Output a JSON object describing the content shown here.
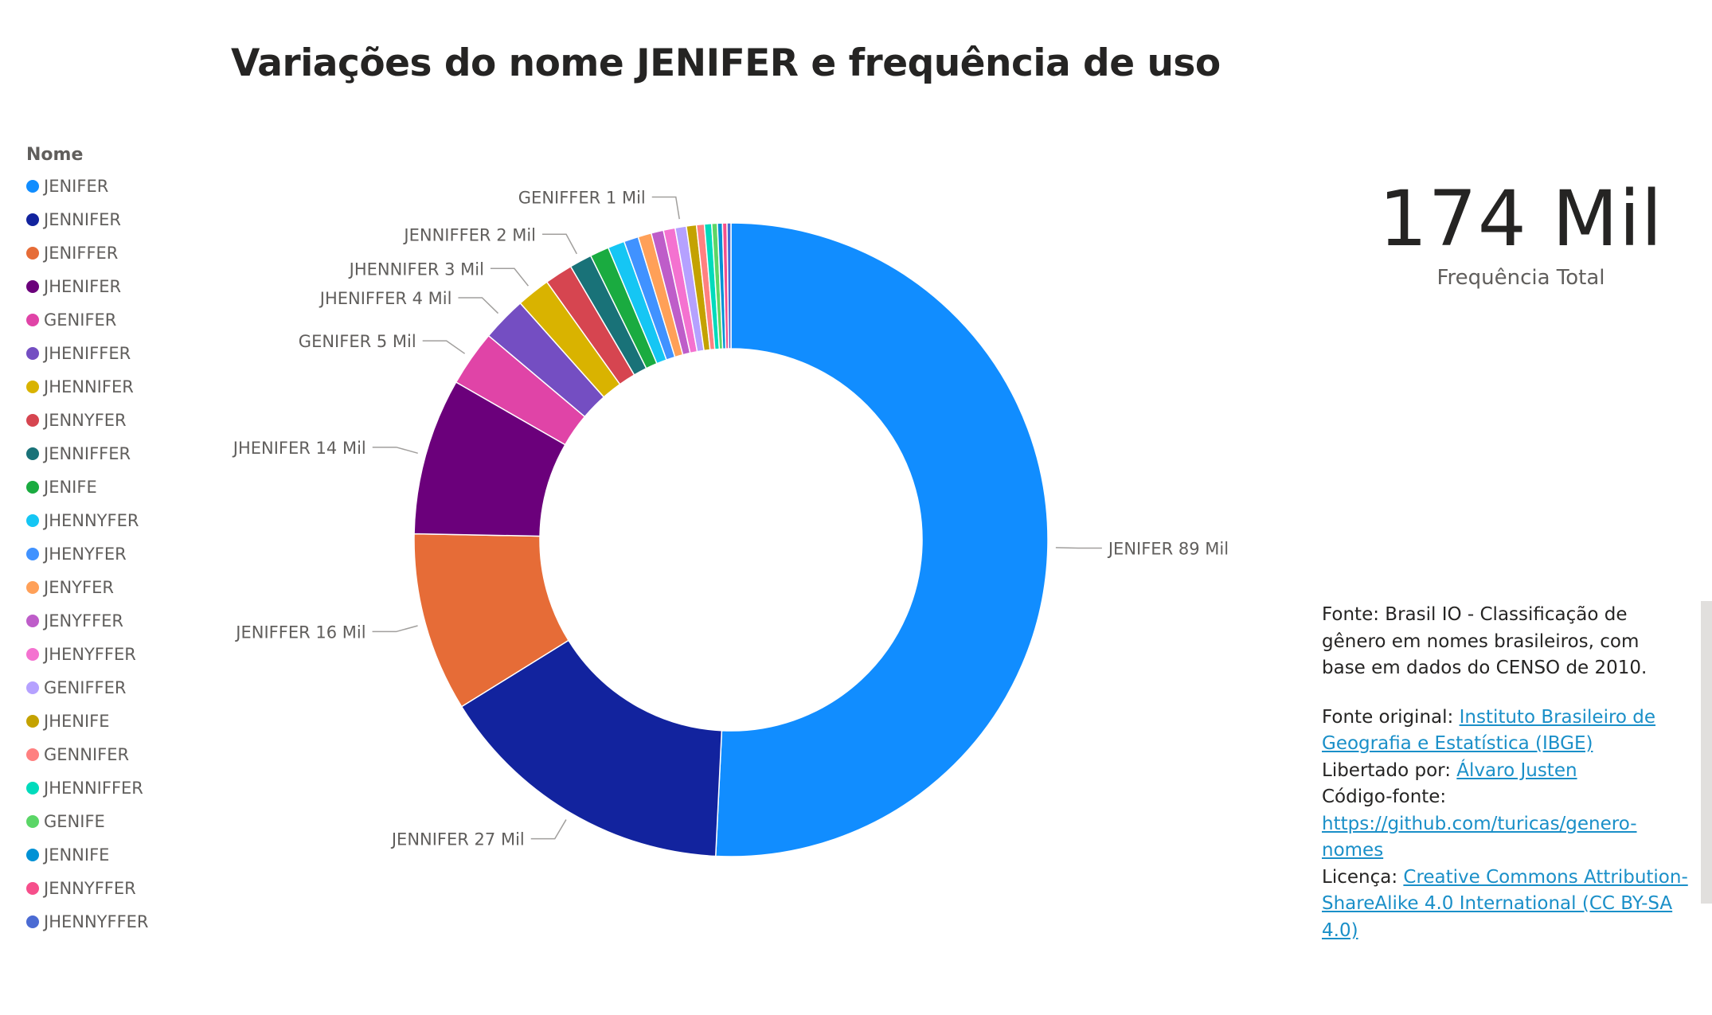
{
  "title": "Variações do nome JENIFER e frequência de uso",
  "legend": {
    "title": "Nome",
    "items": [
      {
        "label": "JENIFER",
        "color": "#118dff"
      },
      {
        "label": "JENNIFER",
        "color": "#12239e"
      },
      {
        "label": "JENIFFER",
        "color": "#e66c37"
      },
      {
        "label": "JHENIFER",
        "color": "#6b007b"
      },
      {
        "label": "GENIFER",
        "color": "#e044a7"
      },
      {
        "label": "JHENIFFER",
        "color": "#744ec2"
      },
      {
        "label": "JHENNIFER",
        "color": "#d9b300"
      },
      {
        "label": "JENNYFER",
        "color": "#d64550"
      },
      {
        "label": "JENNIFFER",
        "color": "#197278"
      },
      {
        "label": "JENIFE",
        "color": "#1aab40"
      },
      {
        "label": "JHENNYFER",
        "color": "#15c6f4"
      },
      {
        "label": "JHENYFER",
        "color": "#4092ff"
      },
      {
        "label": "JENYFER",
        "color": "#ffa058"
      },
      {
        "label": "JENYFFER",
        "color": "#be5dc9"
      },
      {
        "label": "JHENYFFER",
        "color": "#f472d0"
      },
      {
        "label": "GENIFFER",
        "color": "#b5a1ff"
      },
      {
        "label": "JHENIFE",
        "color": "#c4a200"
      },
      {
        "label": "GENNIFER",
        "color": "#ff8080"
      },
      {
        "label": "JHENNIFFER",
        "color": "#00dbbc"
      },
      {
        "label": "GENIFE",
        "color": "#5bd667"
      },
      {
        "label": "JENNIFE",
        "color": "#0091d5"
      },
      {
        "label": "JENNYFFER",
        "color": "#f64f8b"
      },
      {
        "label": "JHENNYFFER",
        "color": "#4b6bd3"
      }
    ]
  },
  "card": {
    "value": "174 Mil",
    "label": "Frequência Total"
  },
  "source": {
    "line1": "Fonte: Brasil IO - Classificação de gênero em nomes brasileiros, com base em dados do CENSO de 2010.",
    "original_prefix": "Fonte original: ",
    "original_link": "Instituto Brasileiro de Geografia e Estatística (IBGE)",
    "freed_prefix": "Libertado por: ",
    "freed_link": "Álvaro Justen",
    "code_prefix": "Código-fonte: ",
    "code_link": "https://github.com/turicas/genero-nomes",
    "license_prefix": "Licença: ",
    "license_link": "Creative Commons Attribution-ShareAlike 4.0 International (CC BY-SA 4.0)"
  },
  "chart_data": {
    "type": "pie",
    "donut": true,
    "total_label": "174 Mil",
    "series": [
      {
        "name": "JENIFER",
        "value": 89000,
        "label": "JENIFER 89 Mil"
      },
      {
        "name": "JENNIFER",
        "value": 27000,
        "label": "JENNIFER 27 Mil"
      },
      {
        "name": "JENIFFER",
        "value": 16000,
        "label": "JENIFFER 16 Mil"
      },
      {
        "name": "JHENIFER",
        "value": 14000,
        "label": "JHENIFER 14 Mil"
      },
      {
        "name": "GENIFER",
        "value": 5000,
        "label": "GENIFER 5 Mil"
      },
      {
        "name": "JHENIFFER",
        "value": 4000,
        "label": "JHENIFFER 4 Mil"
      },
      {
        "name": "JHENNIFER",
        "value": 3000,
        "label": "JHENNIFER 3 Mil"
      },
      {
        "name": "JENNYFER",
        "value": 2500,
        "label": ""
      },
      {
        "name": "JENNIFFER",
        "value": 2000,
        "label": "JENNIFFER 2 Mil"
      },
      {
        "name": "JENIFE",
        "value": 1700,
        "label": ""
      },
      {
        "name": "JHENNYFER",
        "value": 1500,
        "label": ""
      },
      {
        "name": "JHENYFER",
        "value": 1300,
        "label": ""
      },
      {
        "name": "JENYFER",
        "value": 1200,
        "label": ""
      },
      {
        "name": "JENYFFER",
        "value": 1100,
        "label": ""
      },
      {
        "name": "JHENYFFER",
        "value": 1050,
        "label": ""
      },
      {
        "name": "GENIFFER",
        "value": 1000,
        "label": "GENIFFER 1 Mil"
      },
      {
        "name": "JHENIFE",
        "value": 900,
        "label": ""
      },
      {
        "name": "GENNIFER",
        "value": 700,
        "label": ""
      },
      {
        "name": "JHENNIFFER",
        "value": 650,
        "label": ""
      },
      {
        "name": "GENIFE",
        "value": 500,
        "label": ""
      },
      {
        "name": "JENNIFE",
        "value": 450,
        "label": ""
      },
      {
        "name": "JENNYFFER",
        "value": 400,
        "label": ""
      },
      {
        "name": "JHENNYFFER",
        "value": 350,
        "label": ""
      }
    ],
    "legend_position": "left"
  }
}
